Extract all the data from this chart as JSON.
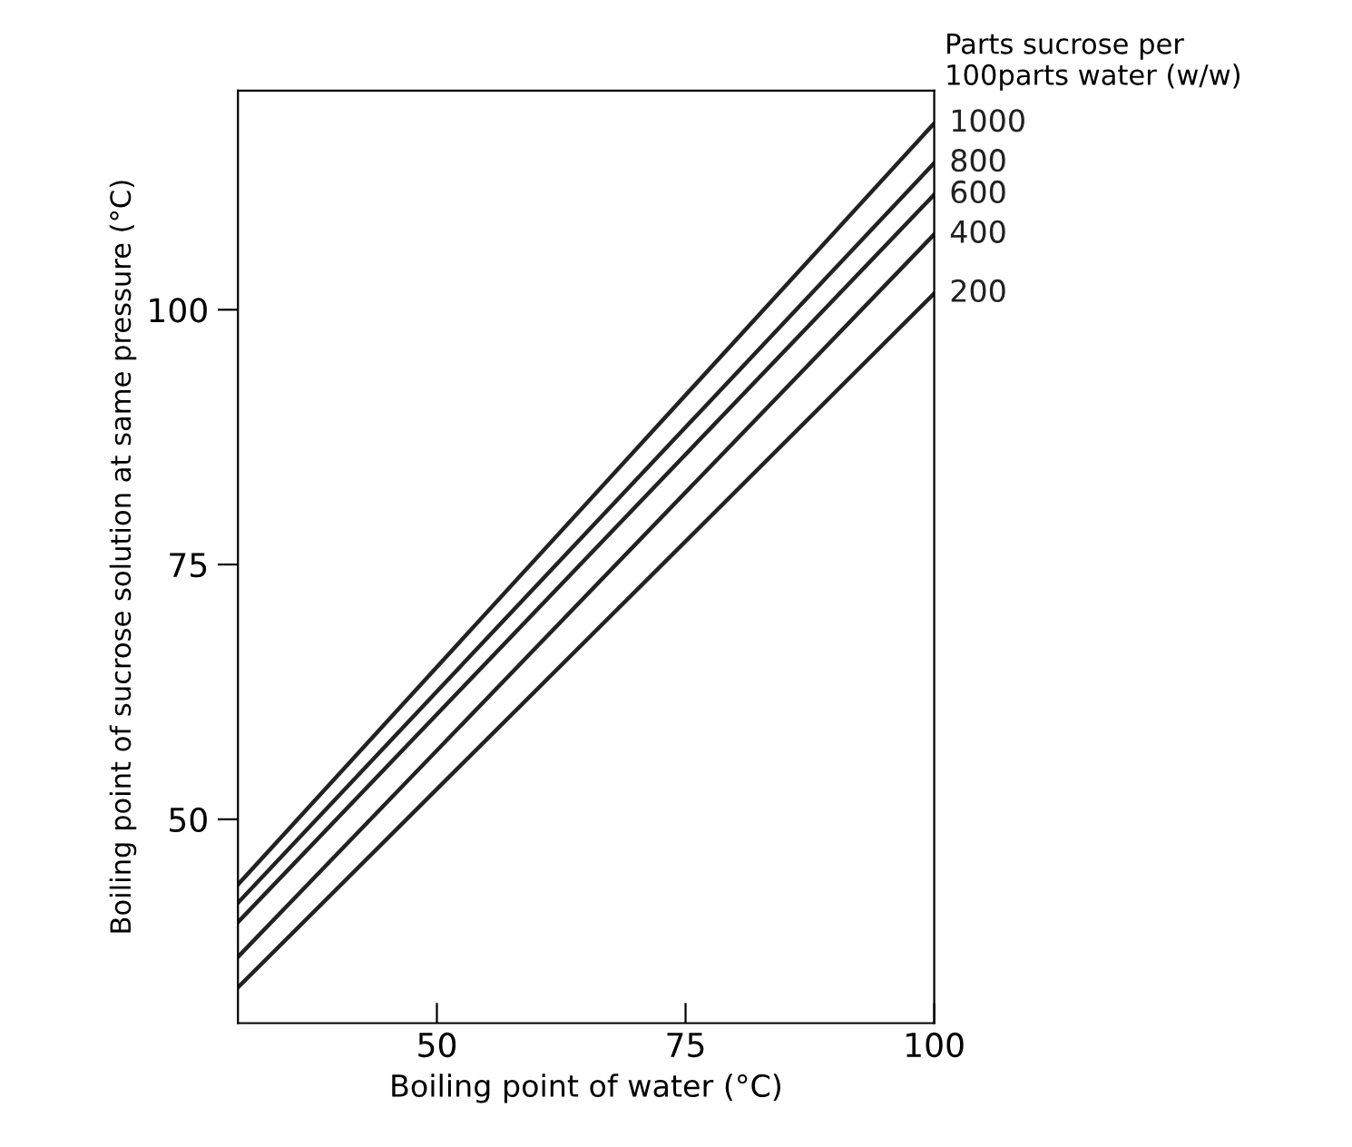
{
  "chart_data": {
    "type": "line",
    "xlabel": "Boiling point of water (°C)",
    "ylabel": "Boiling point of sucrose solution at same pressure (°C)",
    "legend_title": "Parts sucrose per\n100parts water (w/w)",
    "x": [
      30,
      100
    ],
    "series": [
      {
        "name": "1000",
        "color": "#222222",
        "values": [
          43.6,
          118.3
        ]
      },
      {
        "name": "800",
        "color": "#222222",
        "values": [
          41.8,
          114.4
        ]
      },
      {
        "name": "600",
        "color": "#222222",
        "values": [
          39.9,
          111.3
        ]
      },
      {
        "name": "400",
        "color": "#222222",
        "values": [
          36.5,
          107.4
        ]
      },
      {
        "name": "200",
        "color": "#222222",
        "values": [
          33.5,
          101.6
        ]
      }
    ],
    "xlim": [
      30,
      100
    ],
    "ylim": [
      30,
      121.5
    ],
    "xticks": [
      50,
      75,
      100
    ],
    "yticks": [
      50,
      75,
      100
    ],
    "grid": false,
    "legend": false,
    "marker": "none",
    "line_style": "solid"
  }
}
